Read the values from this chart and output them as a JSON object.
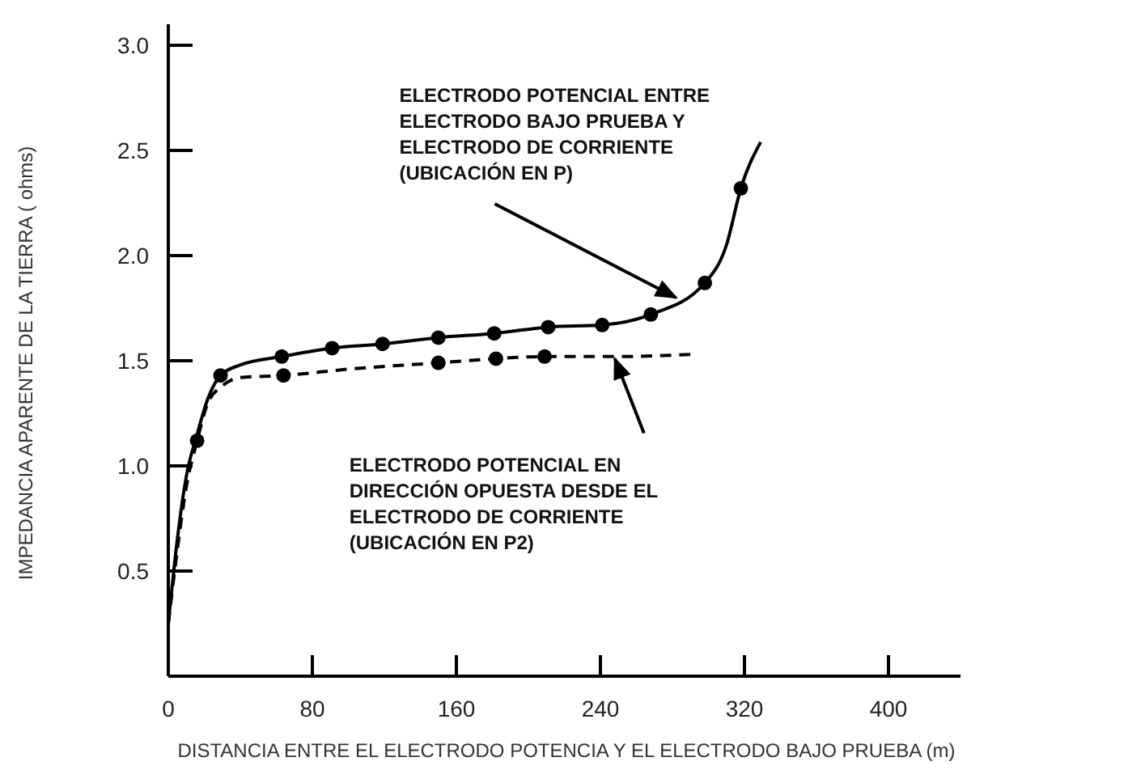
{
  "chart_data": {
    "type": "line",
    "xlabel": "DISTANCIA ENTRE EL ELECTRODO POTENCIA Y EL ELECTRODO BAJO PRUEBA (m)",
    "ylabel": "IMPEDANCIA APARENTE DE LA TIERRA ( ohms)",
    "xlim": [
      0,
      440
    ],
    "xticks": [
      0,
      80,
      160,
      240,
      320,
      400
    ],
    "ylim": [
      0,
      3.1
    ],
    "yticks": [
      0.5,
      {
        "value": 1,
        "label": "1.0"
      },
      1.5,
      {
        "value": 2,
        "label": "2.0"
      },
      2.5,
      {
        "value": 3,
        "label": "3.0"
      }
    ],
    "grid": false,
    "series": [
      {
        "color": "#000000",
        "line_style": "solid",
        "marker": "none",
        "x": [
          0,
          5,
          10,
          16,
          22,
          29,
          40,
          63,
          91,
          119,
          150,
          181,
          211,
          241,
          268,
          298,
          310,
          318,
          329
        ],
        "values": [
          0.25,
          0.65,
          0.95,
          1.15,
          1.32,
          1.43,
          1.48,
          1.52,
          1.56,
          1.58,
          1.61,
          1.63,
          1.66,
          1.67,
          1.72,
          1.87,
          2.05,
          2.32,
          2.54
        ]
      },
      {
        "color": "#000000",
        "line_style": "dashed",
        "marker": "none",
        "x": [
          0,
          5,
          10,
          16,
          22,
          30,
          40,
          64,
          100,
          150,
          182,
          209,
          250,
          290
        ],
        "values": [
          0.25,
          0.6,
          0.9,
          1.12,
          1.3,
          1.38,
          1.42,
          1.43,
          1.46,
          1.49,
          1.51,
          1.52,
          1.52,
          1.53
        ]
      },
      {
        "type": "scatter",
        "color": "#000000",
        "marker": "circle",
        "x": [
          16,
          29,
          63,
          91,
          119,
          150,
          181,
          211,
          241,
          268,
          298,
          318
        ],
        "values": [
          1.12,
          1.43,
          1.52,
          1.56,
          1.58,
          1.61,
          1.63,
          1.66,
          1.67,
          1.72,
          1.87,
          2.32
        ]
      },
      {
        "type": "scatter",
        "color": "#000000",
        "marker": "circle",
        "x": [
          64,
          150,
          182,
          209
        ],
        "values": [
          1.43,
          1.49,
          1.51,
          1.52
        ]
      }
    ],
    "annotations": [
      {
        "text": "ELECTRODO POTENCIAL ENTRE\nELECTRODO BAJO PRUEBA Y\nELECTRODO DE CORRIENTE\n(UBICACIÓN EN P)",
        "x": 282,
        "y": 1.8
      },
      {
        "text": "ELECTRODO POTENCIAL EN\nDIRECCIÓN OPUESTA DESDE EL\nELECTRODO DE CORRIENTE\n(UBICACIÓN EN P2)",
        "x": 248,
        "y": 1.51
      }
    ]
  }
}
